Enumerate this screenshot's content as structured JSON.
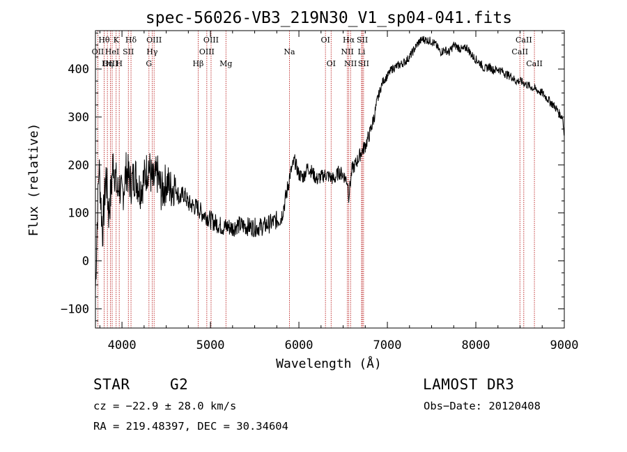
{
  "chart_data": {
    "type": "line",
    "title": "spec-56026-VB3_219N30_V1_sp04-041.fits",
    "xlabel": "Wavelength (Å)",
    "ylabel": "Flux (relative)",
    "xlim": [
      3700,
      9000
    ],
    "ylim": [
      -140,
      480
    ],
    "xticks": [
      4000,
      5000,
      6000,
      7000,
      8000,
      9000
    ],
    "yticks": [
      -100,
      0,
      100,
      200,
      300,
      400
    ],
    "xtick_labels": [
      "4000",
      "5000",
      "6000",
      "7000",
      "8000",
      "9000"
    ],
    "ytick_labels": [
      "−100",
      "0",
      "100",
      "200",
      "300",
      "400"
    ],
    "series": [
      {
        "name": "spectrum",
        "x": [
          3700,
          3720,
          3740,
          3760,
          3780,
          3800,
          3820,
          3850,
          3880,
          3900,
          3930,
          3950,
          3970,
          4000,
          4050,
          4100,
          4150,
          4200,
          4250,
          4300,
          4350,
          4400,
          4450,
          4500,
          4550,
          4600,
          4650,
          4700,
          4750,
          4800,
          4860,
          4900,
          4950,
          5000,
          5050,
          5100,
          5150,
          5200,
          5250,
          5300,
          5400,
          5500,
          5600,
          5700,
          5750,
          5800,
          5850,
          5900,
          5950,
          6000,
          6050,
          6100,
          6150,
          6200,
          6250,
          6300,
          6350,
          6400,
          6450,
          6500,
          6550,
          6563,
          6600,
          6650,
          6700,
          6750,
          6800,
          6850,
          6900,
          6950,
          7000,
          7050,
          7100,
          7150,
          7200,
          7250,
          7300,
          7350,
          7400,
          7450,
          7500,
          7550,
          7600,
          7650,
          7700,
          7750,
          7800,
          7850,
          7900,
          7950,
          8000,
          8050,
          8100,
          8150,
          8200,
          8250,
          8300,
          8350,
          8400,
          8450,
          8500,
          8550,
          8600,
          8650,
          8700,
          8750,
          8800,
          8850,
          8900,
          8950,
          8980,
          9000
        ],
        "y": [
          -60,
          80,
          200,
          130,
          60,
          120,
          180,
          100,
          150,
          210,
          170,
          140,
          160,
          130,
          190,
          160,
          180,
          150,
          170,
          200,
          160,
          180,
          140,
          165,
          150,
          160,
          130,
          140,
          120,
          115,
          110,
          100,
          95,
          85,
          80,
          75,
          70,
          72,
          68,
          75,
          72,
          70,
          72,
          80,
          85,
          90,
          130,
          180,
          210,
          180,
          175,
          195,
          185,
          170,
          175,
          180,
          175,
          170,
          185,
          180,
          165,
          135,
          190,
          205,
          225,
          240,
          265,
          300,
          345,
          375,
          385,
          400,
          405,
          410,
          415,
          425,
          440,
          455,
          462,
          460,
          458,
          450,
          435,
          440,
          435,
          450,
          445,
          440,
          445,
          430,
          420,
          412,
          400,
          405,
          398,
          400,
          395,
          388,
          385,
          375,
          375,
          370,
          365,
          360,
          355,
          350,
          340,
          330,
          320,
          305,
          300,
          260
        ]
      }
    ],
    "line_annotations": [
      {
        "label": "Hθ",
        "x": 3798,
        "row": 1
      },
      {
        "label": "K",
        "x": 3934,
        "row": 1
      },
      {
        "label": "Hδ",
        "x": 4102,
        "row": 1
      },
      {
        "label": "OII",
        "x": 3727,
        "row": 2
      },
      {
        "label": "HeI",
        "x": 3889,
        "row": 2
      },
      {
        "label": "SII",
        "x": 4072,
        "row": 2
      },
      {
        "label": "OIII",
        "x": 3869,
        "row": 3
      },
      {
        "label": "Hη",
        "x": 3835,
        "row": 3
      },
      {
        "label": "H",
        "x": 3969,
        "row": 3
      },
      {
        "label": "OIII",
        "x": 4363,
        "row": 1
      },
      {
        "label": "Hγ",
        "x": 4341,
        "row": 2
      },
      {
        "label": "G",
        "x": 4305,
        "row": 3
      },
      {
        "label": "OIII",
        "x": 5007,
        "row": 1
      },
      {
        "label": "OIII",
        "x": 4959,
        "row": 2
      },
      {
        "label": "Hβ",
        "x": 4861,
        "row": 3
      },
      {
        "label": "Mg",
        "x": 5175,
        "row": 3
      },
      {
        "label": "Na",
        "x": 5893,
        "row": 2
      },
      {
        "label": "OI",
        "x": 6300,
        "row": 1
      },
      {
        "label": "OI",
        "x": 6364,
        "row": 3
      },
      {
        "label": "Hα",
        "x": 6563,
        "row": 1
      },
      {
        "label": "SII",
        "x": 6717,
        "row": 1
      },
      {
        "label": "NII",
        "x": 6548,
        "row": 2
      },
      {
        "label": "Li",
        "x": 6708,
        "row": 2
      },
      {
        "label": "NII",
        "x": 6584,
        "row": 3
      },
      {
        "label": "SII",
        "x": 6731,
        "row": 3
      },
      {
        "label": "CaII",
        "x": 8542,
        "row": 1
      },
      {
        "label": "CaII",
        "x": 8498,
        "row": 2
      },
      {
        "label": "CaII",
        "x": 8662,
        "row": 3
      }
    ]
  },
  "info": {
    "object_class": "STAR",
    "subclass": "G2",
    "survey": "LAMOST DR3",
    "redshift_line": "cz = −22.9 ± 28.0 km/s",
    "coords_line": "RA = 219.48397, DEC =  30.34604",
    "obs_date_line": "Obs−Date: 20120408"
  }
}
